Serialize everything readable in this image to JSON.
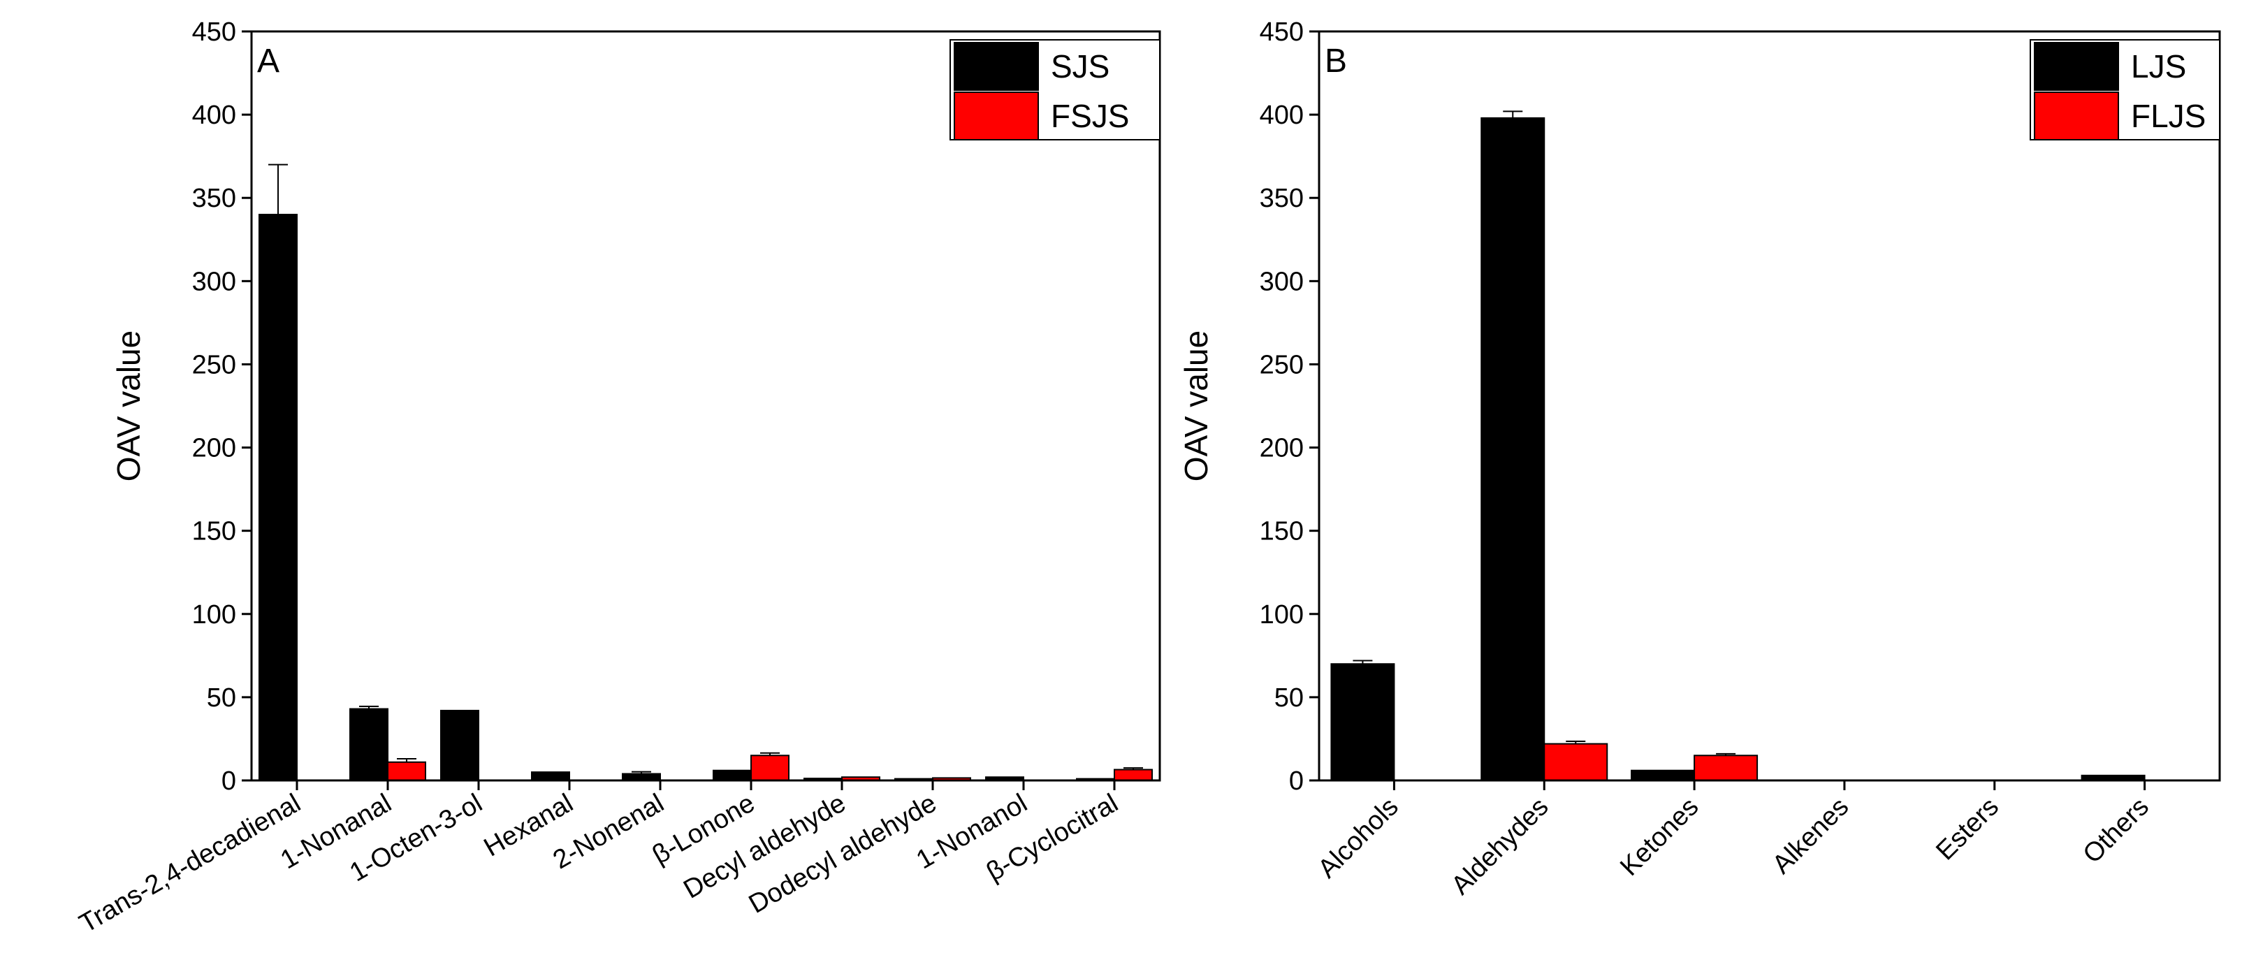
{
  "chart_data": [
    {
      "type": "bar",
      "panel_label": "A",
      "ylabel": "OAV value",
      "xlabel": "",
      "ylim": [
        0,
        450
      ],
      "yticks": [
        0,
        50,
        100,
        150,
        200,
        250,
        300,
        350,
        400,
        450
      ],
      "legend_position": "top-right",
      "grid": false,
      "categories": [
        "Trans-2,4-decadienal",
        "1-Nonanal",
        "1-Octen-3-ol",
        "Hexanal",
        "2-Nonenal",
        "β-Lonone",
        "Decyl aldehyde",
        "Dodecyl aldehyde",
        "1-Nonanol",
        "β-Cyclocitral"
      ],
      "series": [
        {
          "name": "SJS",
          "color": "#000000",
          "values": [
            340,
            43,
            42,
            5,
            4,
            6,
            1.2,
            1.0,
            2.0,
            1.0
          ],
          "errors": [
            30,
            1.5,
            0,
            0,
            1.2,
            0,
            0,
            0,
            0,
            0
          ]
        },
        {
          "name": "FSJS",
          "color": "#ff0000",
          "values": [
            0,
            11,
            0,
            0,
            0,
            15,
            2.0,
            1.5,
            0,
            6.5
          ],
          "errors": [
            0,
            2,
            0,
            0,
            0,
            1.5,
            0,
            0,
            0,
            1.0
          ]
        }
      ]
    },
    {
      "type": "bar",
      "panel_label": "B",
      "ylabel": "OAV value",
      "xlabel": "",
      "ylim": [
        0,
        450
      ],
      "yticks": [
        0,
        50,
        100,
        150,
        200,
        250,
        300,
        350,
        400,
        450
      ],
      "legend_position": "top-right",
      "grid": false,
      "categories": [
        "Alcohols",
        "Aldehydes",
        "Ketones",
        "Alkenes",
        "Esters",
        "Others"
      ],
      "series": [
        {
          "name": "LJS",
          "color": "#000000",
          "values": [
            70,
            398,
            6,
            0,
            0,
            3
          ],
          "errors": [
            2,
            4,
            0,
            0,
            0,
            0
          ]
        },
        {
          "name": "FLJS",
          "color": "#ff0000",
          "values": [
            0,
            22,
            15,
            0,
            0,
            0
          ],
          "errors": [
            0,
            1.5,
            1,
            0,
            0,
            0
          ]
        }
      ]
    }
  ]
}
